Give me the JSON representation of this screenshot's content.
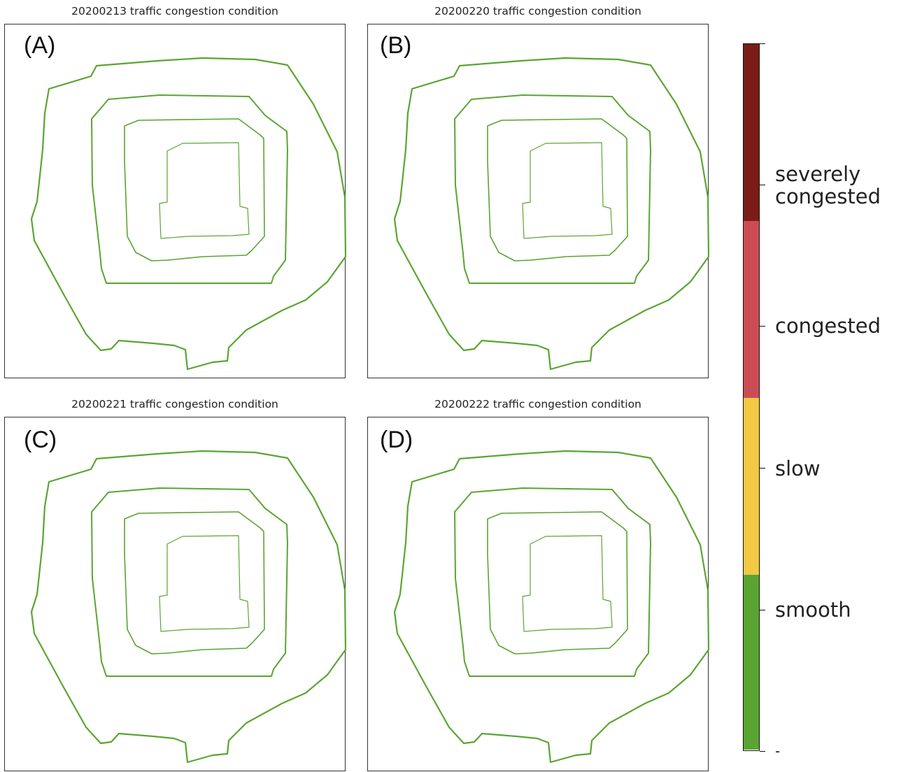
{
  "panels": [
    {
      "title": "20200213 traffic congestion condition",
      "label": "(A)",
      "status": "smooth"
    },
    {
      "title": "20200220 traffic congestion condition",
      "label": "(B)",
      "status": "smooth"
    },
    {
      "title": "20200221 traffic congestion condition",
      "label": "(C)",
      "status": "smooth"
    },
    {
      "title": "20200222 traffic congestion condition",
      "label": "(D)",
      "status": "smooth"
    }
  ],
  "legend": {
    "categories": [
      {
        "name": "severely\ncongested",
        "color": "#7b1c16"
      },
      {
        "name": "congested",
        "color": "#cc4c56"
      },
      {
        "name": "slow",
        "color": "#f3c843"
      },
      {
        "name": "smooth",
        "color": "#5aa532"
      }
    ],
    "bottom_tick_label": "-"
  },
  "road_color": "#5aa532"
}
